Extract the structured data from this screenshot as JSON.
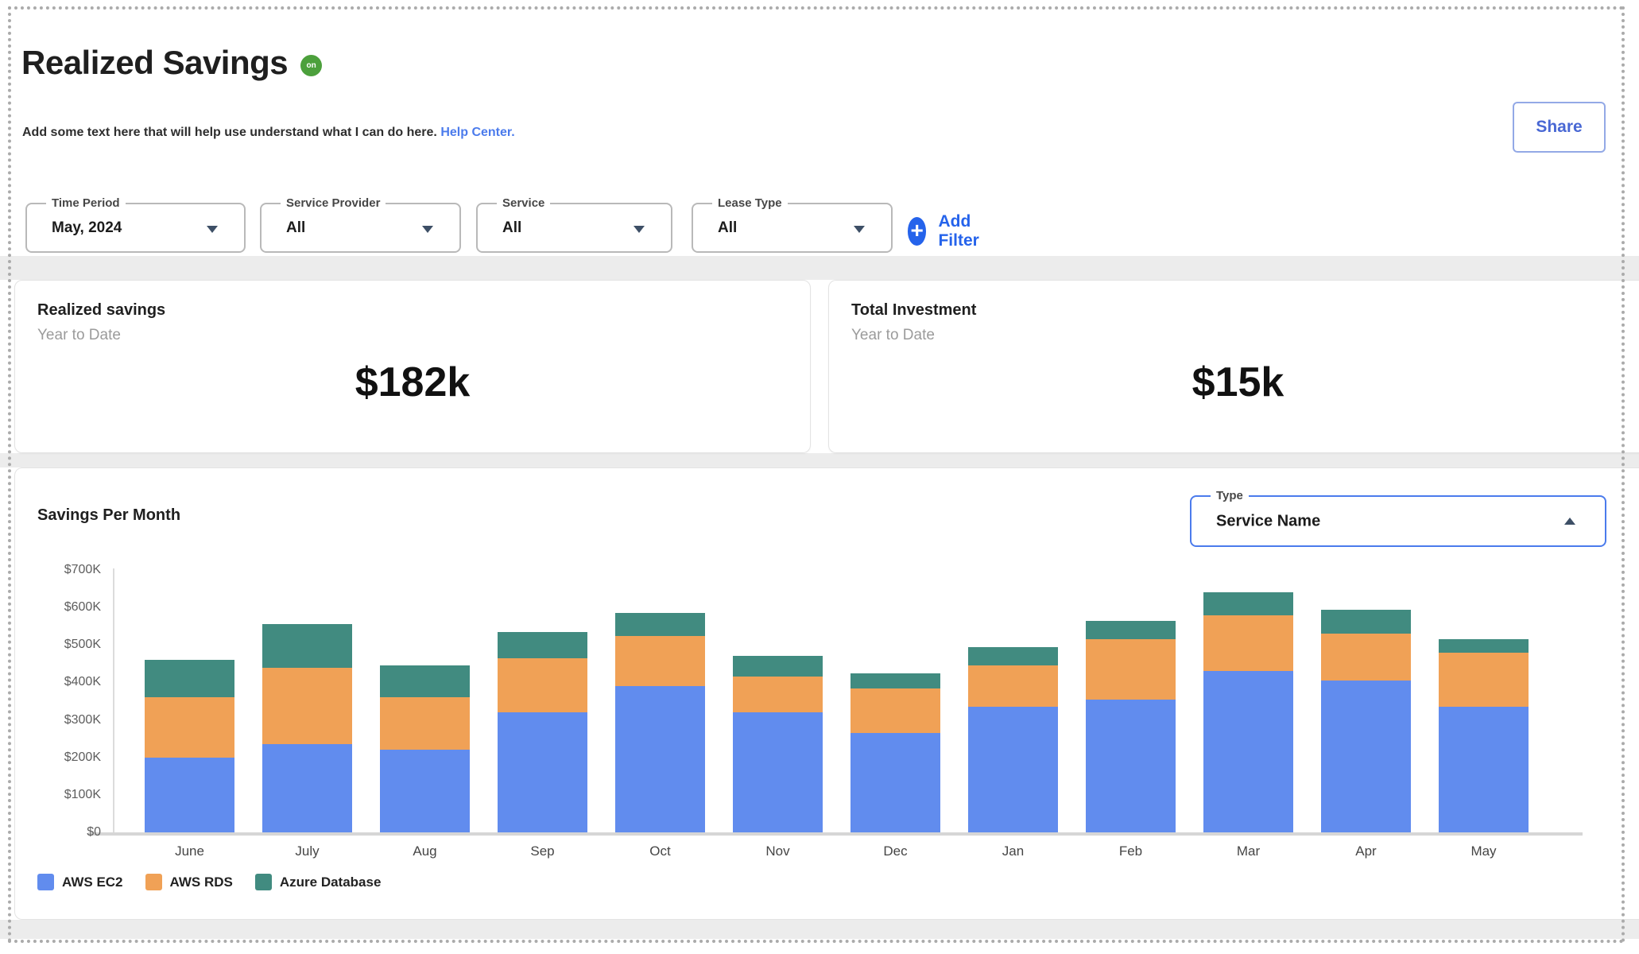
{
  "header": {
    "title": "Realized Savings",
    "badge": "on",
    "subtitle": "Add some text here that will help use understand what I can do here.",
    "help_link": "Help Center.",
    "share_label": "Share"
  },
  "filters": {
    "items": [
      {
        "label": "Time Period",
        "value": "May, 2024"
      },
      {
        "label": "Service Provider",
        "value": "All"
      },
      {
        "label": "Service",
        "value": "All"
      },
      {
        "label": "Lease Type",
        "value": "All"
      }
    ],
    "add_label": "Add Filter"
  },
  "kpis": [
    {
      "title": "Realized savings",
      "period": "Year to Date",
      "value": "$182k"
    },
    {
      "title": "Total Investment",
      "period": "Year to Date",
      "value": "$15k"
    }
  ],
  "chart": {
    "title": "Savings Per Month",
    "type_filter": {
      "label": "Type",
      "value": "Service Name"
    }
  },
  "chart_data": {
    "type": "bar",
    "stacked": true,
    "title": "Savings Per Month",
    "xlabel": "",
    "ylabel": "",
    "ylim": [
      0,
      700
    ],
    "y_unit": "$K",
    "grid": false,
    "legend_position": "bottom-left",
    "y_tick_values": [
      0,
      100,
      200,
      300,
      400,
      500,
      600,
      700
    ],
    "y_tick_labels": [
      "$0",
      "$100K",
      "$200K",
      "$300K",
      "$400K",
      "$500K",
      "$600K",
      "$700K"
    ],
    "categories": [
      "June",
      "July",
      "Aug",
      "Sep",
      "Oct",
      "Nov",
      "Dec",
      "Jan",
      "Feb",
      "Mar",
      "Apr",
      "May"
    ],
    "series": [
      {
        "name": "AWS EC2",
        "color": "#618CEE",
        "values": [
          200,
          235,
          220,
          320,
          390,
          320,
          265,
          335,
          355,
          430,
          405,
          335
        ]
      },
      {
        "name": "AWS RDS",
        "color": "#F0A156",
        "values": [
          160,
          205,
          140,
          145,
          135,
          95,
          120,
          110,
          160,
          150,
          125,
          145
        ]
      },
      {
        "name": "Azure Database",
        "color": "#418B80",
        "values": [
          100,
          115,
          85,
          70,
          60,
          55,
          40,
          50,
          50,
          60,
          65,
          35
        ]
      }
    ]
  },
  "colors": {
    "accent_blue": "#2563eb",
    "link_blue": "#4b7bec",
    "badge_green": "#4ca03c",
    "band_gray": "#ececec"
  }
}
